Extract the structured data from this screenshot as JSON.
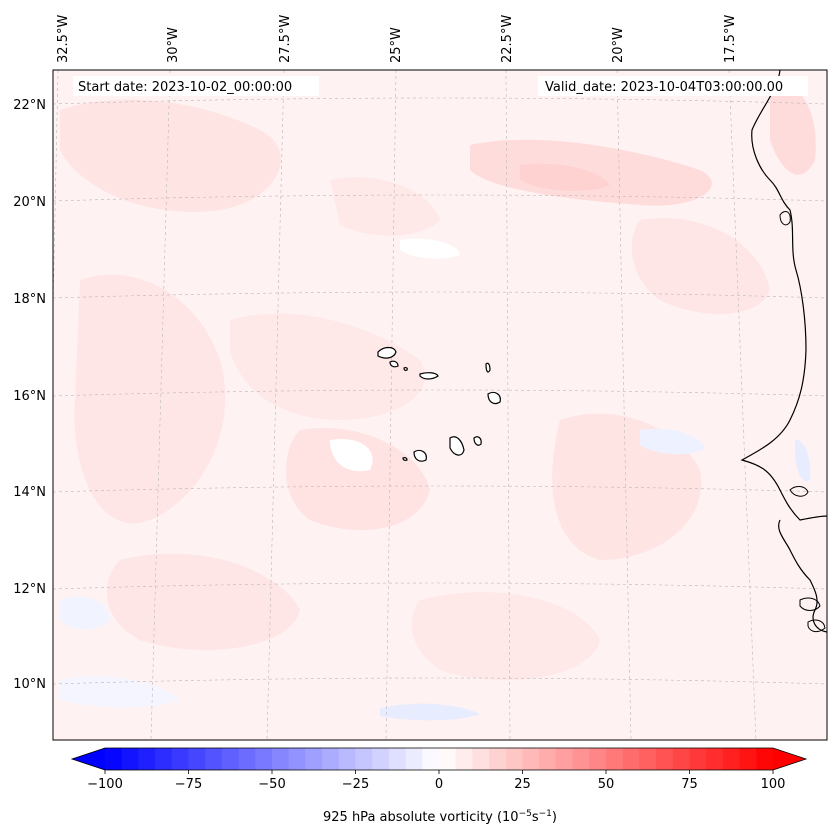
{
  "map": {
    "start_date": "Start date: 2023-10-02_00:00:00",
    "valid_date": "Valid_date: 2023-10-04T03:00:00.00",
    "lon_labels": [
      "32.5°W",
      "30°W",
      "27.5°W",
      "25°W",
      "22.5°W",
      "20°W",
      "17.5°W"
    ],
    "lat_labels": [
      "22°N",
      "20°N",
      "18°N",
      "16°N",
      "14°N",
      "12°N",
      "10°N"
    ],
    "field": "925 hPa absolute vorticity",
    "units": "10^-5 s^-1"
  },
  "colorbar": {
    "label_prefix": "925 hPa absolute vorticity (10",
    "label_exp1": "−5",
    "label_mid": "s",
    "label_exp2": "−1",
    "label_suffix": ")",
    "ticks": [
      "−100",
      "−75",
      "−50",
      "−25",
      "0",
      "25",
      "50",
      "75",
      "100"
    ],
    "tick_values": [
      -100,
      -75,
      -50,
      -25,
      0,
      25,
      50,
      75,
      100
    ],
    "range": [
      -100,
      100
    ],
    "colormap": "bwr",
    "extend": "both",
    "levels": 40
  },
  "colors": {
    "negative": "#0000ff",
    "zero": "#ffffff",
    "positive": "#ff0000",
    "coast": "#000000"
  }
}
